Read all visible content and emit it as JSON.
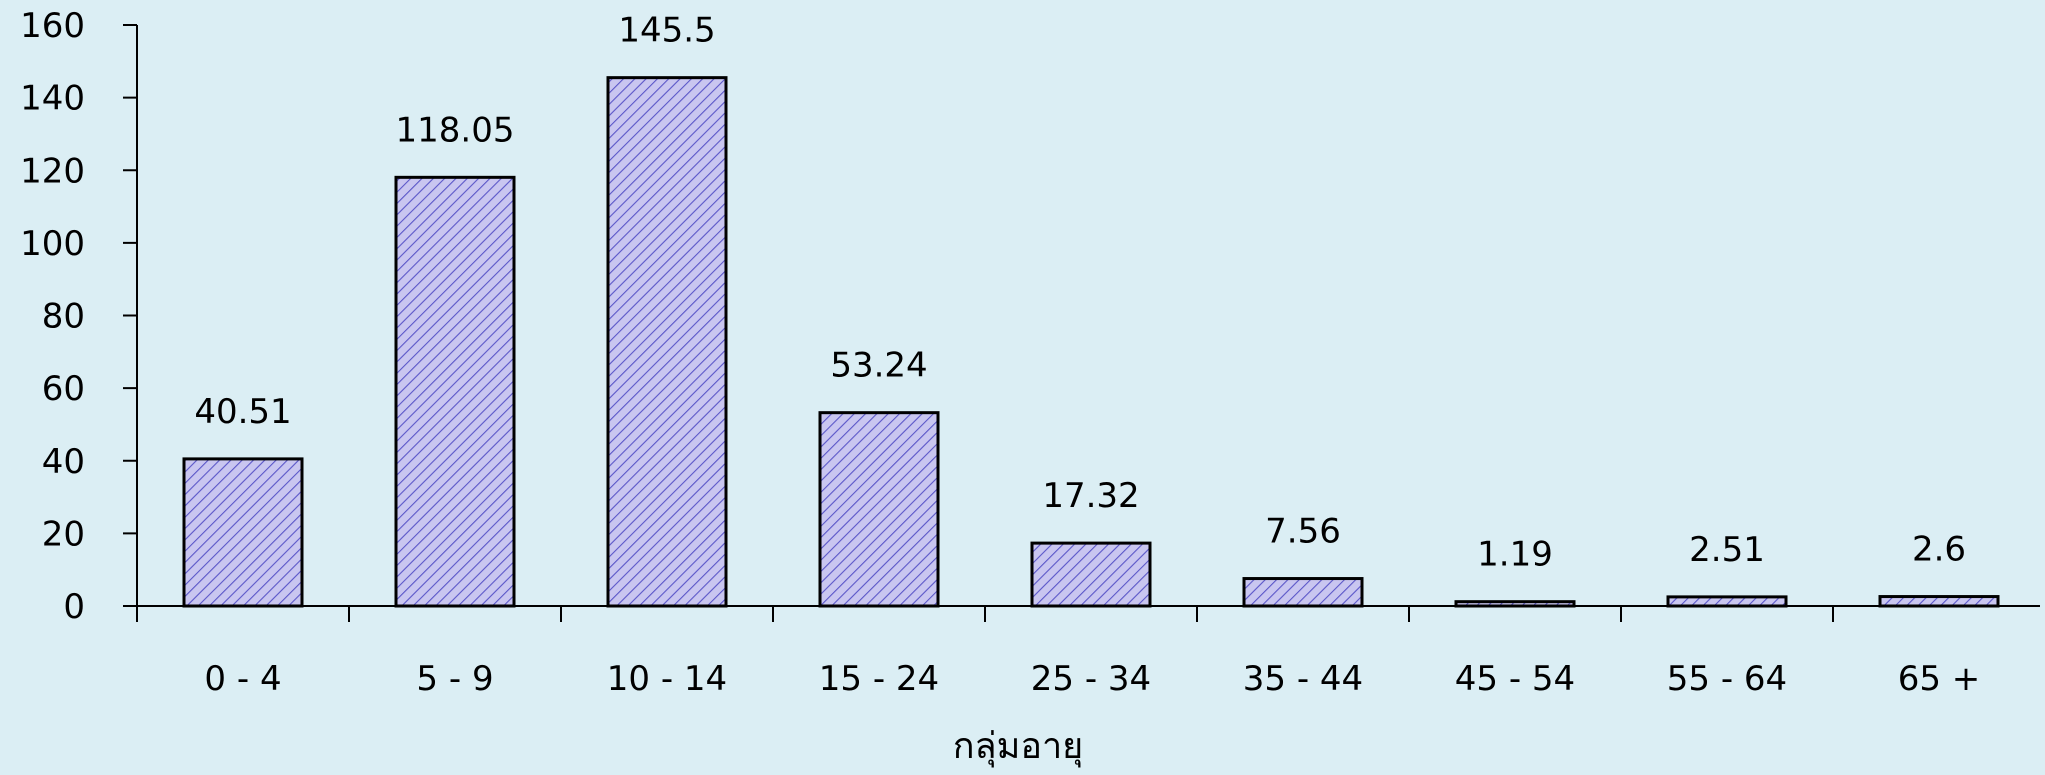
{
  "chart_data": {
    "type": "bar",
    "title": "",
    "xlabel": "กลุ่มอายุ",
    "ylabel": "",
    "categories": [
      "0 - 4",
      "5 - 9",
      "10 - 14",
      "15 - 24",
      "25 - 34",
      "35 - 44",
      "45 - 54",
      "55 - 64",
      "65 +"
    ],
    "values": [
      40.51,
      118.05,
      145.5,
      53.24,
      17.32,
      7.56,
      1.19,
      2.51,
      2.6
    ],
    "data_labels": [
      "40.51",
      "118.05",
      "145.5",
      "53.24",
      "17.32",
      "7.56",
      "1.19",
      "2.51",
      "2.6"
    ],
    "ylim": [
      0,
      160
    ],
    "yticks": [
      0,
      20,
      40,
      60,
      80,
      100,
      120,
      140,
      160
    ],
    "grid": false,
    "legend": "none",
    "bar_fill": "#b8b4e8",
    "bar_hatch_color": "#5a56c8",
    "bar_stroke": "#000000",
    "background": "#dbeef4"
  }
}
